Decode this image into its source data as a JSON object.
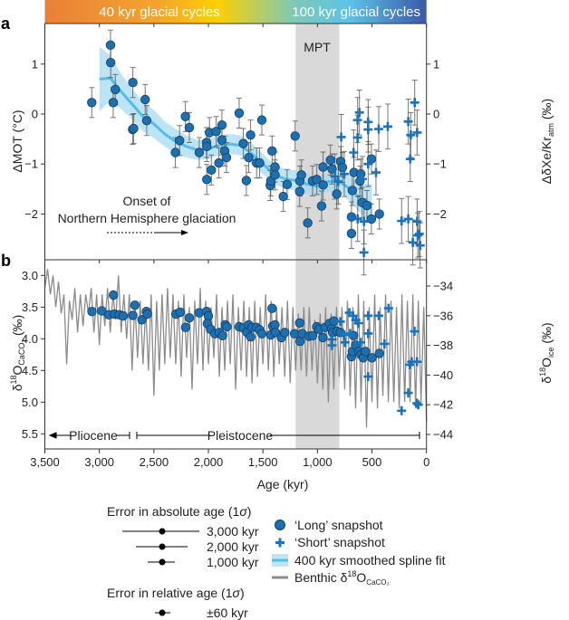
{
  "panel_labels": {
    "a": "a",
    "b": "b"
  },
  "colorbar": {
    "left_label": "40 kyr glacial cycles",
    "right_label": "100 kyr glacial cycles",
    "colors": [
      "#e8803a",
      "#f4a52c",
      "#ffd000",
      "#7fc9b4",
      "#5cc3ea",
      "#3b58a6"
    ]
  },
  "mpt": {
    "label": "MPT",
    "age_range": [
      1200,
      800
    ],
    "color": "#d9d9d9"
  },
  "x_axis": {
    "label": "Age (kyr)",
    "ticks": [
      3500,
      3000,
      2500,
      2000,
      1500,
      1000,
      500,
      0
    ],
    "tick_labels": [
      "3,500",
      "3,000",
      "2,500",
      "2,000",
      "1,500",
      "1,000",
      "500",
      "0"
    ],
    "range": [
      3500,
      0
    ]
  },
  "annotations": {
    "onset_line1": "Onset of",
    "onset_line2": "Northern Hemisphere glaciation",
    "pliocene": "Pliocene",
    "pleistocene": "Pleistocene"
  },
  "chart_data": [
    {
      "type": "scatter",
      "panel": "a",
      "ylabel": "ΔMOT (°C)",
      "ylabel_right_main": "ΔδXe/Kr",
      "ylabel_right_sub": "atm",
      "ylabel_right_unit": " (‰)",
      "ylim": [
        -2.85,
        1.85
      ],
      "yticks": [
        1,
        0,
        -1,
        -2
      ],
      "yticks_right": [
        1,
        0,
        -1,
        -2
      ],
      "colors": {
        "long": "#1d6fb0",
        "long_edge": "#163d63",
        "short": "#1a73ba",
        "fit": "#55bde8",
        "band": "#9fd8f0",
        "errorbar": "#555555"
      },
      "long_snapshot": {
        "err": 0.3,
        "points": [
          [
            3070,
            0.23
          ],
          [
            2898,
            1.38
          ],
          [
            2896,
            1.03
          ],
          [
            2873,
            0.23
          ],
          [
            2854,
            0.49
          ],
          [
            2693,
            0.63
          ],
          [
            2695,
            -0.31
          ],
          [
            2685,
            -0.29
          ],
          [
            2580,
            0.29
          ],
          [
            2566,
            -0.13
          ],
          [
            2303,
            -0.77
          ],
          [
            2264,
            -0.53
          ],
          [
            2211,
            -0.05
          ],
          [
            2175,
            -0.27
          ],
          [
            2084,
            -0.77
          ],
          [
            2017,
            -0.57
          ],
          [
            2015,
            -0.65
          ],
          [
            2015,
            -1.31
          ],
          [
            1990,
            -0.37
          ],
          [
            1973,
            -1.12
          ],
          [
            1929,
            -0.35
          ],
          [
            1904,
            -0.98
          ],
          [
            1876,
            -0.22
          ],
          [
            1876,
            -0.52
          ],
          [
            1851,
            -0.74
          ],
          [
            1835,
            -0.87
          ],
          [
            1718,
            0.02
          ],
          [
            1680,
            -0.59
          ],
          [
            1652,
            -1.33
          ],
          [
            1630,
            -0.87
          ],
          [
            1613,
            -0.42
          ],
          [
            1558,
            -0.98
          ],
          [
            1530,
            -0.98
          ],
          [
            1510,
            -0.12
          ],
          [
            1433,
            -1.43
          ],
          [
            1428,
            -1.34
          ],
          [
            1416,
            -0.74
          ],
          [
            1389,
            -1.06
          ],
          [
            1389,
            -1.22
          ],
          [
            1313,
            -1.65
          ],
          [
            1278,
            -1.41
          ],
          [
            1205,
            -0.44
          ],
          [
            1161,
            -1.34
          ],
          [
            1163,
            -1.55
          ],
          [
            1147,
            -1.22
          ],
          [
            1089,
            -2.18
          ],
          [
            1045,
            -1.34
          ],
          [
            1006,
            -1.31
          ],
          [
            962,
            -1.84
          ],
          [
            948,
            -1.42
          ],
          [
            948,
            -1.06
          ],
          [
            881,
            -0.92
          ],
          [
            866,
            -1.1
          ],
          [
            823,
            -1.6
          ],
          [
            787,
            -0.95
          ],
          [
            771,
            -1.07
          ],
          [
            688,
            -2.39
          ],
          [
            688,
            -2.06
          ],
          [
            665,
            -1.17
          ],
          [
            680,
            -1.53
          ],
          [
            610,
            -1.34
          ],
          [
            602,
            -1.2
          ],
          [
            590,
            -1.77
          ],
          [
            546,
            -1.83
          ],
          [
            505,
            -0.9
          ],
          [
            505,
            -2.1
          ],
          [
            432,
            -2.0
          ]
        ]
      },
      "short_snapshot": {
        "err": 0.45,
        "points": [
          [
            782,
            -0.46
          ],
          [
            754,
            -1.2
          ],
          [
            840,
            -1.25
          ],
          [
            810,
            -1.35
          ],
          [
            668,
            -0.77
          ],
          [
            632,
            -0.12
          ],
          [
            615,
            0.03
          ],
          [
            632,
            -0.47
          ],
          [
            535,
            -0.16
          ],
          [
            535,
            -0.31
          ],
          [
            535,
            -1.0
          ],
          [
            438,
            -0.3
          ],
          [
            463,
            -1.17
          ],
          [
            355,
            -0.25
          ],
          [
            588,
            -1.3
          ],
          [
            631,
            -2.1
          ],
          [
            574,
            -2.77
          ],
          [
            573,
            -2.15
          ],
          [
            228,
            -2.14
          ],
          [
            167,
            -2.1
          ],
          [
            167,
            -0.15
          ],
          [
            144,
            -0.42
          ],
          [
            149,
            -0.9
          ],
          [
            108,
            0.23
          ],
          [
            86,
            -0.37
          ],
          [
            86,
            -2.15
          ],
          [
            66,
            -2.4
          ],
          [
            125,
            -2.57
          ],
          [
            58,
            -2.63
          ],
          [
            80,
            -2.43
          ]
        ]
      },
      "spline_fit": {
        "name": "400 kyr smoothed spline fit",
        "points": [
          [
            3000,
            0.7
          ],
          [
            2900,
            0.72
          ],
          [
            2800,
            0.45
          ],
          [
            2700,
            0.2
          ],
          [
            2600,
            -0.05
          ],
          [
            2500,
            -0.2
          ],
          [
            2400,
            -0.4
          ],
          [
            2300,
            -0.55
          ],
          [
            2200,
            -0.65
          ],
          [
            2100,
            -0.72
          ],
          [
            2000,
            -0.7
          ],
          [
            1900,
            -0.62
          ],
          [
            1800,
            -0.6
          ],
          [
            1700,
            -0.63
          ],
          [
            1600,
            -0.8
          ],
          [
            1500,
            -1.0
          ],
          [
            1400,
            -1.2
          ],
          [
            1300,
            -1.3
          ],
          [
            1200,
            -1.33
          ],
          [
            1100,
            -1.4
          ],
          [
            1000,
            -1.45
          ],
          [
            900,
            -1.35
          ],
          [
            800,
            -1.35
          ],
          [
            700,
            -1.5
          ],
          [
            600,
            -1.7
          ],
          [
            500,
            -1.8
          ]
        ],
        "band_halfwidth": [
          0.65,
          0.45,
          0.35,
          0.3,
          0.3,
          0.28,
          0.25,
          0.25,
          0.22,
          0.2,
          0.2,
          0.2,
          0.2,
          0.2,
          0.2,
          0.2,
          0.2,
          0.2,
          0.2,
          0.2,
          0.2,
          0.2,
          0.2,
          0.25,
          0.3,
          0.4
        ]
      }
    },
    {
      "type": "line+scatter",
      "panel": "b",
      "ylabel_main": "δ",
      "ylabel_sup": "18",
      "ylabel_O": "O",
      "ylabel_sub": "CaCO₃",
      "ylabel_unit": " (‰)",
      "ylabel_right_sub": "ice",
      "ylim": [
        2.78,
        5.76
      ],
      "ylim_inverted": true,
      "yticks": [
        3.0,
        3.5,
        4.0,
        4.5,
        5.0,
        5.5
      ],
      "yticks_labels": [
        "3.0",
        "3.5",
        "4.0",
        "4.5",
        "5.0",
        "5.5"
      ],
      "yticks_right": [
        -34,
        -36,
        -38,
        -40,
        -42,
        -44
      ],
      "colors": {
        "benthic": "#8c8c8c",
        "long": "#1d6fb0",
        "short": "#1a73ba"
      },
      "benthic": {
        "age_start": 3500,
        "age_step": 25,
        "values": [
          3.2,
          2.9,
          3.3,
          3.0,
          3.5,
          3.1,
          3.6,
          3.3,
          4.4,
          3.4,
          3.7,
          3.2,
          3.9,
          3.3,
          3.8,
          3.3,
          3.6,
          3.2,
          3.9,
          3.3,
          4.1,
          3.3,
          3.8,
          3.2,
          3.9,
          3.3,
          3.7,
          3.0,
          3.9,
          3.3,
          4.0,
          3.3,
          4.5,
          3.4,
          4.3,
          3.4,
          4.4,
          3.5,
          4.5,
          3.3,
          4.9,
          3.4,
          4.5,
          3.3,
          4.4,
          3.2,
          4.3,
          3.3,
          4.4,
          3.4,
          4.6,
          3.3,
          4.3,
          3.5,
          4.8,
          3.4,
          4.4,
          3.2,
          4.5,
          3.4,
          4.4,
          3.5,
          4.3,
          3.3,
          4.6,
          3.5,
          4.5,
          3.4,
          4.4,
          3.3,
          4.8,
          3.5,
          4.5,
          3.4,
          4.6,
          3.5,
          4.7,
          3.4,
          4.6,
          3.5,
          4.4,
          3.3,
          4.5,
          3.4,
          4.6,
          3.5,
          4.4,
          3.5,
          4.6,
          3.4,
          4.7,
          3.5,
          4.5,
          3.6,
          4.5,
          3.5,
          4.6,
          3.5,
          4.5,
          3.7,
          4.7,
          3.6,
          4.8,
          3.5,
          5.0,
          3.6,
          4.8,
          3.5,
          4.6,
          3.5,
          4.8,
          3.4,
          4.9,
          3.5,
          5.1,
          3.3,
          5.0,
          3.4,
          5.4,
          3.5,
          5.0,
          3.3,
          5.1,
          3.5,
          4.9,
          3.3,
          5.0,
          3.4,
          5.0,
          3.5,
          5.1,
          3.3,
          5.0,
          3.4,
          5.0,
          3.3,
          5.1,
          3.4,
          5.0,
          3.5,
          5.3
        ]
      },
      "long_snapshot": [
        [
          3068,
          3.57
        ],
        [
          2978,
          3.56
        ],
        [
          2914,
          3.62
        ],
        [
          2871,
          3.31
        ],
        [
          2860,
          3.61
        ],
        [
          2818,
          3.62
        ],
        [
          2782,
          3.64
        ],
        [
          2693,
          3.63
        ],
        [
          2674,
          3.47
        ],
        [
          2610,
          3.7
        ],
        [
          2569,
          3.57
        ],
        [
          2561,
          3.61
        ],
        [
          2298,
          3.61
        ],
        [
          2259,
          3.58
        ],
        [
          2209,
          3.82
        ],
        [
          2175,
          3.67
        ],
        [
          2084,
          3.59
        ],
        [
          2017,
          3.57
        ],
        [
          2000,
          3.64
        ],
        [
          2010,
          3.76
        ],
        [
          1980,
          3.85
        ],
        [
          1940,
          3.92
        ],
        [
          1900,
          3.9
        ],
        [
          1870,
          3.95
        ],
        [
          1845,
          3.78
        ],
        [
          1830,
          3.81
        ],
        [
          1718,
          3.81
        ],
        [
          1680,
          3.83
        ],
        [
          1645,
          3.9
        ],
        [
          1630,
          3.78
        ],
        [
          1612,
          3.97
        ],
        [
          1600,
          3.82
        ],
        [
          1560,
          3.82
        ],
        [
          1530,
          3.86
        ],
        [
          1510,
          3.92
        ],
        [
          1428,
          3.94
        ],
        [
          1416,
          3.52
        ],
        [
          1410,
          3.8
        ],
        [
          1390,
          3.78
        ],
        [
          1385,
          3.9
        ],
        [
          1330,
          3.98
        ],
        [
          1300,
          3.9
        ],
        [
          1210,
          3.92
        ],
        [
          1163,
          3.75
        ],
        [
          1160,
          4.04
        ],
        [
          1140,
          3.92
        ],
        [
          1080,
          3.96
        ],
        [
          1045,
          3.95
        ],
        [
          1006,
          3.81
        ],
        [
          985,
          3.85
        ],
        [
          950,
          3.98
        ],
        [
          930,
          3.82
        ],
        [
          890,
          3.76
        ],
        [
          870,
          3.84
        ],
        [
          860,
          3.9
        ],
        [
          850,
          3.72
        ],
        [
          820,
          3.88
        ],
        [
          790,
          3.9
        ],
        [
          688,
          4.28
        ],
        [
          680,
          4.2
        ],
        [
          668,
          3.95
        ],
        [
          650,
          4.1
        ],
        [
          620,
          4.2
        ],
        [
          600,
          4.25
        ],
        [
          580,
          4.3
        ],
        [
          560,
          4.2
        ],
        [
          500,
          4.3
        ],
        [
          432,
          4.23
        ]
      ],
      "short_snapshot_ice": [
        [
          790,
          -36.4
        ],
        [
          707,
          -35.8
        ],
        [
          674,
          -36.0
        ],
        [
          648,
          -36.3
        ],
        [
          623,
          -36.5
        ],
        [
          754,
          -37.3
        ],
        [
          700,
          -37.2
        ],
        [
          535,
          -36.0
        ],
        [
          535,
          -37.2
        ],
        [
          438,
          -36.0
        ],
        [
          348,
          -35.5
        ],
        [
          535,
          -40.1
        ],
        [
          385,
          -37.9
        ],
        [
          228,
          -42.4
        ],
        [
          167,
          -41.2
        ],
        [
          154,
          -39.3
        ],
        [
          135,
          -39.1
        ],
        [
          87,
          -39.1
        ],
        [
          110,
          -37.05
        ],
        [
          87,
          -41.9
        ],
        [
          75,
          -42.0
        ],
        [
          866,
          -37.6
        ],
        [
          866,
          -38.0
        ],
        [
          747,
          -37.8
        ],
        [
          604,
          -37.8
        ]
      ]
    }
  ],
  "legend": {
    "abs_title": "Error in absolute age (1",
    "sigma": "σ",
    "close": ")",
    "abs_items": [
      "3,000 kyr",
      "2,000 kyr",
      "1,000 kyr"
    ],
    "rel_title": "Error in relative age (1",
    "rel_item": "±60 kyr",
    "long": "‘Long’ snapshot",
    "short": "‘Short’ snapshot",
    "fit": "400 kyr smoothed spline fit",
    "benthic_main": "Benthic δ",
    "benthic_sup": "18",
    "benthic_O": "O",
    "benthic_sub": "CaCO₃"
  }
}
